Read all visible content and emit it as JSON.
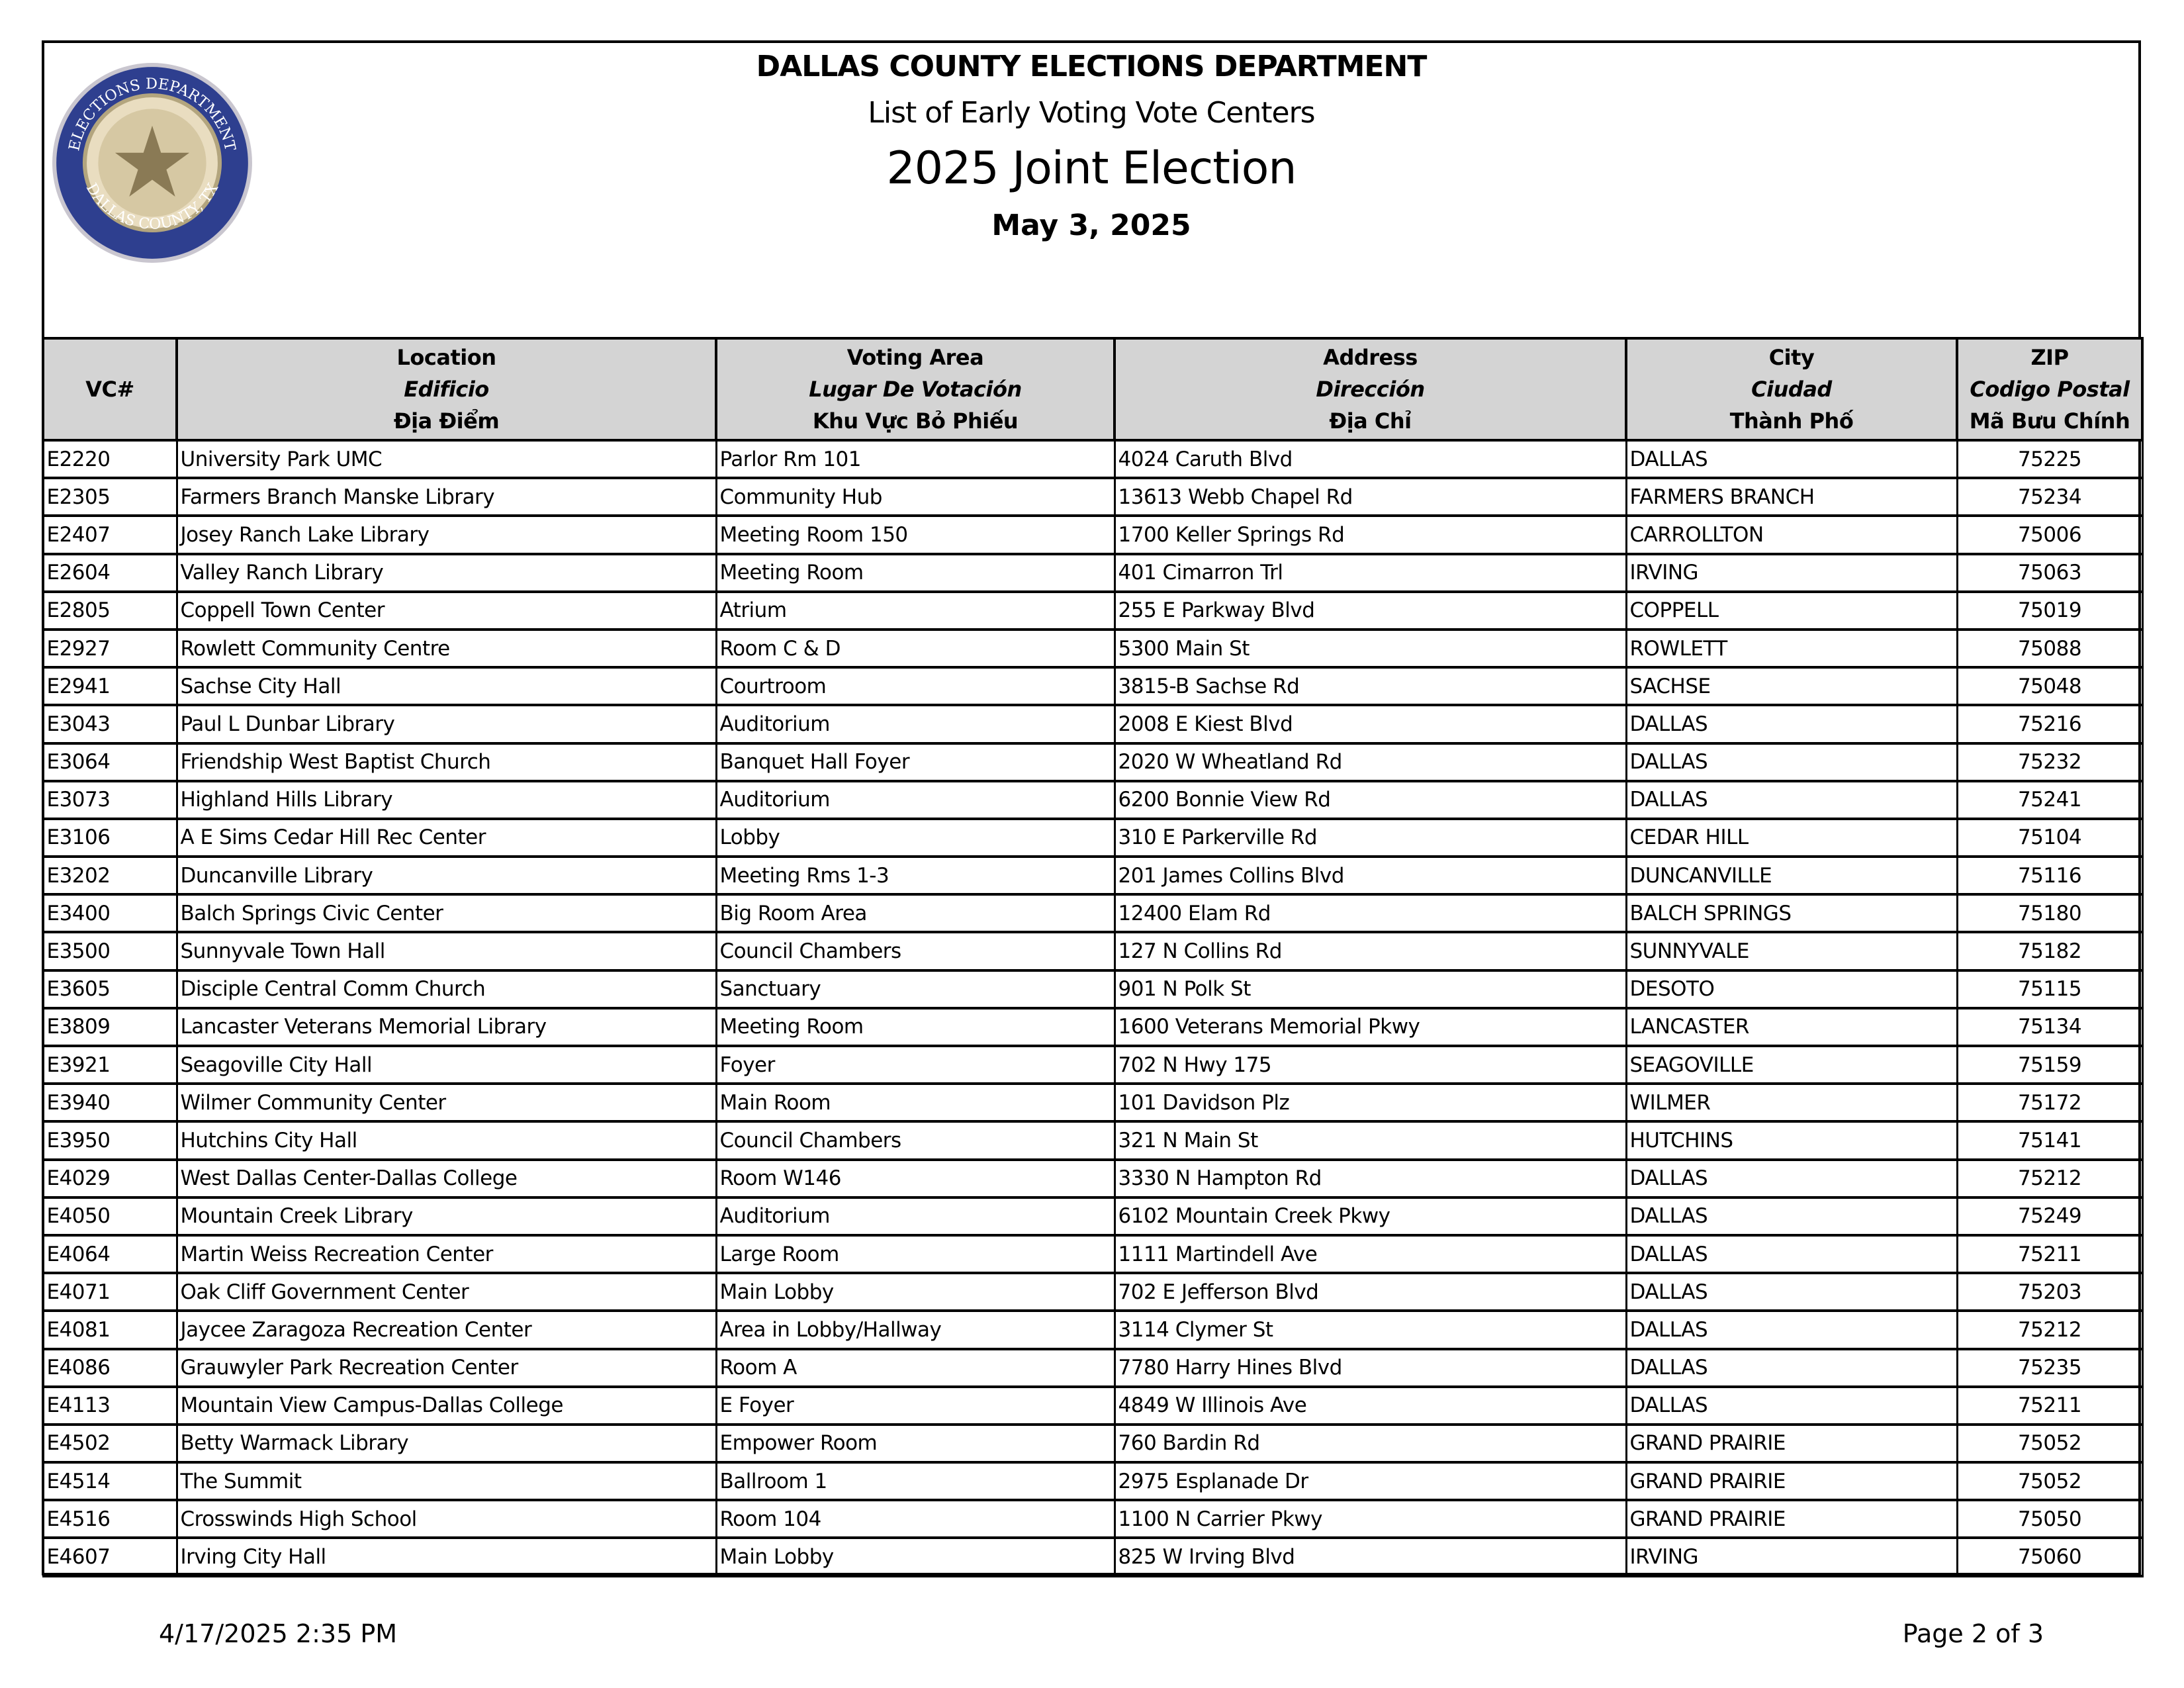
{
  "header": {
    "title": "DALLAS COUNTY ELECTIONS DEPARTMENT",
    "subtitle": "List of Early Voting Vote Centers",
    "election": "2025 Joint Election",
    "date": "May 3, 2025",
    "seal_text": "ELECTIONS DEPARTMENT · DALLAS COUNTY, TX"
  },
  "columns": [
    {
      "l1": "VC#"
    },
    {
      "l1": "Location",
      "l2": "Edificio",
      "l3": "Địa Điểm"
    },
    {
      "l1": "Voting Area",
      "l2": "Lugar De Votación",
      "l3": "Khu Vực Bỏ Phiếu"
    },
    {
      "l1": "Address",
      "l2": "Dirección",
      "l3": "Địa Chỉ"
    },
    {
      "l1": "City",
      "l2": "Ciudad",
      "l3": "Thành Phố"
    },
    {
      "l1": "ZIP",
      "l2": "Codigo Postal",
      "l3": "Mã Bưu Chính"
    }
  ],
  "rows": [
    [
      "E2220",
      "University Park UMC",
      "Parlor Rm 101",
      "4024 Caruth Blvd",
      "DALLAS",
      "75225"
    ],
    [
      "E2305",
      "Farmers Branch Manske Library",
      "Community Hub",
      "13613 Webb Chapel Rd",
      "FARMERS BRANCH",
      "75234"
    ],
    [
      "E2407",
      "Josey Ranch Lake Library",
      "Meeting Room 150",
      "1700 Keller Springs Rd",
      "CARROLLTON",
      "75006"
    ],
    [
      "E2604",
      "Valley Ranch Library",
      "Meeting Room",
      "401 Cimarron Trl",
      "IRVING",
      "75063"
    ],
    [
      "E2805",
      "Coppell Town Center",
      "Atrium",
      "255 E Parkway Blvd",
      "COPPELL",
      "75019"
    ],
    [
      "E2927",
      "Rowlett Community Centre",
      "Room C & D",
      "5300 Main St",
      "ROWLETT",
      "75088"
    ],
    [
      "E2941",
      "Sachse City Hall",
      "Courtroom",
      "3815-B Sachse Rd",
      "SACHSE",
      "75048"
    ],
    [
      "E3043",
      "Paul L Dunbar Library",
      "Auditorium",
      "2008 E Kiest Blvd",
      "DALLAS",
      "75216"
    ],
    [
      "E3064",
      "Friendship West Baptist Church",
      "Banquet Hall Foyer",
      "2020 W Wheatland Rd",
      "DALLAS",
      "75232"
    ],
    [
      "E3073",
      "Highland Hills Library",
      "Auditorium",
      "6200 Bonnie View Rd",
      "DALLAS",
      "75241"
    ],
    [
      "E3106",
      "A E Sims Cedar Hill Rec Center",
      "Lobby",
      "310 E Parkerville Rd",
      "CEDAR HILL",
      "75104"
    ],
    [
      "E3202",
      "Duncanville Library",
      "Meeting Rms 1-3",
      "201 James Collins Blvd",
      "DUNCANVILLE",
      "75116"
    ],
    [
      "E3400",
      "Balch Springs Civic Center",
      "Big Room Area",
      "12400 Elam Rd",
      "BALCH SPRINGS",
      "75180"
    ],
    [
      "E3500",
      "Sunnyvale Town Hall",
      "Council Chambers",
      "127 N Collins Rd",
      "SUNNYVALE",
      "75182"
    ],
    [
      "E3605",
      "Disciple Central Comm Church",
      "Sanctuary",
      "901 N Polk St",
      "DESOTO",
      "75115"
    ],
    [
      "E3809",
      "Lancaster Veterans Memorial Library",
      "Meeting Room",
      "1600 Veterans Memorial Pkwy",
      "LANCASTER",
      "75134"
    ],
    [
      "E3921",
      "Seagoville City Hall",
      "Foyer",
      "702 N Hwy 175",
      "SEAGOVILLE",
      "75159"
    ],
    [
      "E3940",
      "Wilmer Community Center",
      "Main Room",
      "101 Davidson Plz",
      "WILMER",
      "75172"
    ],
    [
      "E3950",
      "Hutchins City Hall",
      "Council Chambers",
      "321 N Main St",
      "HUTCHINS",
      "75141"
    ],
    [
      "E4029",
      "West Dallas Center-Dallas College",
      "Room W146",
      "3330 N Hampton Rd",
      "DALLAS",
      "75212"
    ],
    [
      "E4050",
      "Mountain Creek Library",
      "Auditorium",
      "6102 Mountain Creek Pkwy",
      "DALLAS",
      "75249"
    ],
    [
      "E4064",
      "Martin Weiss Recreation Center",
      "Large Room",
      "1111 Martindell Ave",
      "DALLAS",
      "75211"
    ],
    [
      "E4071",
      "Oak Cliff Government Center",
      "Main Lobby",
      "702 E Jefferson Blvd",
      "DALLAS",
      "75203"
    ],
    [
      "E4081",
      "Jaycee Zaragoza Recreation Center",
      "Area in Lobby/Hallway",
      "3114 Clymer St",
      "DALLAS",
      "75212"
    ],
    [
      "E4086",
      "Grauwyler Park Recreation Center",
      "Room A",
      "7780 Harry Hines Blvd",
      "DALLAS",
      "75235"
    ],
    [
      "E4113",
      "Mountain View Campus-Dallas College",
      "E Foyer",
      "4849 W Illinois Ave",
      "DALLAS",
      "75211"
    ],
    [
      "E4502",
      "Betty Warmack Library",
      "Empower Room",
      "760 Bardin Rd",
      "GRAND PRAIRIE",
      "75052"
    ],
    [
      "E4514",
      "The Summit",
      "Ballroom 1",
      "2975 Esplanade Dr",
      "GRAND PRAIRIE",
      "75052"
    ],
    [
      "E4516",
      "Crosswinds High School",
      "Room 104",
      "1100 N Carrier Pkwy",
      "GRAND PRAIRIE",
      "75050"
    ],
    [
      "E4607",
      "Irving City Hall",
      "Main Lobby",
      "825 W Irving Blvd",
      "IRVING",
      "75060"
    ]
  ],
  "footer": {
    "timestamp": "4/17/2025 2:35 PM",
    "page": "Page 2 of 3"
  }
}
